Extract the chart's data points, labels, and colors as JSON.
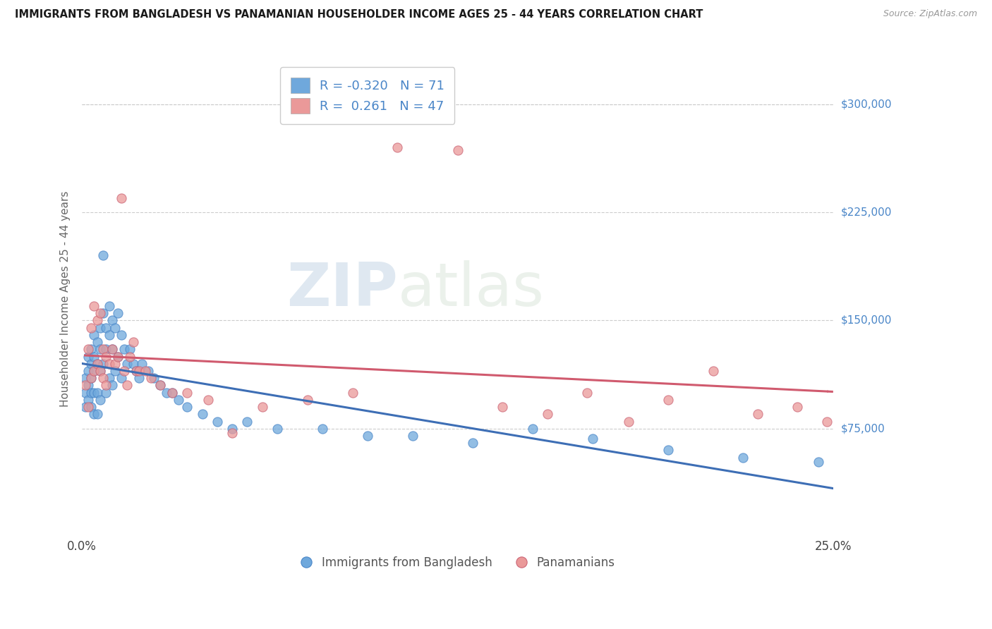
{
  "title": "IMMIGRANTS FROM BANGLADESH VS PANAMANIAN HOUSEHOLDER INCOME AGES 25 - 44 YEARS CORRELATION CHART",
  "source": "Source: ZipAtlas.com",
  "ylabel": "Householder Income Ages 25 - 44 years",
  "legend_label_1": "Immigrants from Bangladesh",
  "legend_label_2": "Panamanians",
  "R1": -0.32,
  "N1": 71,
  "R2": 0.261,
  "N2": 47,
  "color1": "#6fa8dc",
  "color2": "#ea9999",
  "line1_color": "#3d6eb5",
  "line2_color": "#d05a6e",
  "xlim": [
    0.0,
    0.25
  ],
  "ylim": [
    0,
    330000
  ],
  "ytick_positions": [
    75000,
    150000,
    225000,
    300000
  ],
  "ytick_labels": [
    "$75,000",
    "$150,000",
    "$225,000",
    "$300,000"
  ],
  "watermark_zip": "ZIP",
  "watermark_atlas": "atlas",
  "background_color": "#ffffff",
  "grid_color": "#cccccc",
  "bangladesh_x": [
    0.001,
    0.001,
    0.001,
    0.002,
    0.002,
    0.002,
    0.002,
    0.003,
    0.003,
    0.003,
    0.003,
    0.003,
    0.004,
    0.004,
    0.004,
    0.004,
    0.004,
    0.005,
    0.005,
    0.005,
    0.005,
    0.006,
    0.006,
    0.006,
    0.006,
    0.007,
    0.007,
    0.007,
    0.008,
    0.008,
    0.008,
    0.009,
    0.009,
    0.009,
    0.01,
    0.01,
    0.01,
    0.011,
    0.011,
    0.012,
    0.012,
    0.013,
    0.013,
    0.014,
    0.015,
    0.016,
    0.017,
    0.018,
    0.019,
    0.02,
    0.022,
    0.024,
    0.026,
    0.028,
    0.03,
    0.032,
    0.035,
    0.04,
    0.045,
    0.05,
    0.055,
    0.065,
    0.08,
    0.095,
    0.11,
    0.13,
    0.15,
    0.17,
    0.195,
    0.22,
    0.245
  ],
  "bangladesh_y": [
    110000,
    100000,
    90000,
    125000,
    115000,
    105000,
    95000,
    130000,
    120000,
    110000,
    100000,
    90000,
    140000,
    125000,
    115000,
    100000,
    85000,
    135000,
    120000,
    100000,
    85000,
    145000,
    130000,
    115000,
    95000,
    195000,
    155000,
    120000,
    145000,
    130000,
    100000,
    160000,
    140000,
    110000,
    150000,
    130000,
    105000,
    145000,
    115000,
    155000,
    125000,
    140000,
    110000,
    130000,
    120000,
    130000,
    120000,
    115000,
    110000,
    120000,
    115000,
    110000,
    105000,
    100000,
    100000,
    95000,
    90000,
    85000,
    80000,
    75000,
    80000,
    75000,
    75000,
    70000,
    70000,
    65000,
    75000,
    68000,
    60000,
    55000,
    52000
  ],
  "panamanian_x": [
    0.001,
    0.002,
    0.002,
    0.003,
    0.003,
    0.004,
    0.004,
    0.005,
    0.005,
    0.006,
    0.006,
    0.007,
    0.007,
    0.008,
    0.008,
    0.009,
    0.01,
    0.011,
    0.012,
    0.013,
    0.014,
    0.015,
    0.016,
    0.017,
    0.018,
    0.019,
    0.021,
    0.023,
    0.026,
    0.03,
    0.035,
    0.042,
    0.05,
    0.06,
    0.075,
    0.09,
    0.105,
    0.125,
    0.14,
    0.155,
    0.168,
    0.182,
    0.195,
    0.21,
    0.225,
    0.238,
    0.248
  ],
  "panamanian_y": [
    105000,
    130000,
    90000,
    145000,
    110000,
    160000,
    115000,
    150000,
    120000,
    155000,
    115000,
    130000,
    110000,
    125000,
    105000,
    120000,
    130000,
    120000,
    125000,
    235000,
    115000,
    105000,
    125000,
    135000,
    115000,
    115000,
    115000,
    110000,
    105000,
    100000,
    100000,
    95000,
    72000,
    90000,
    95000,
    100000,
    270000,
    268000,
    90000,
    85000,
    100000,
    80000,
    95000,
    115000,
    85000,
    90000,
    80000
  ]
}
